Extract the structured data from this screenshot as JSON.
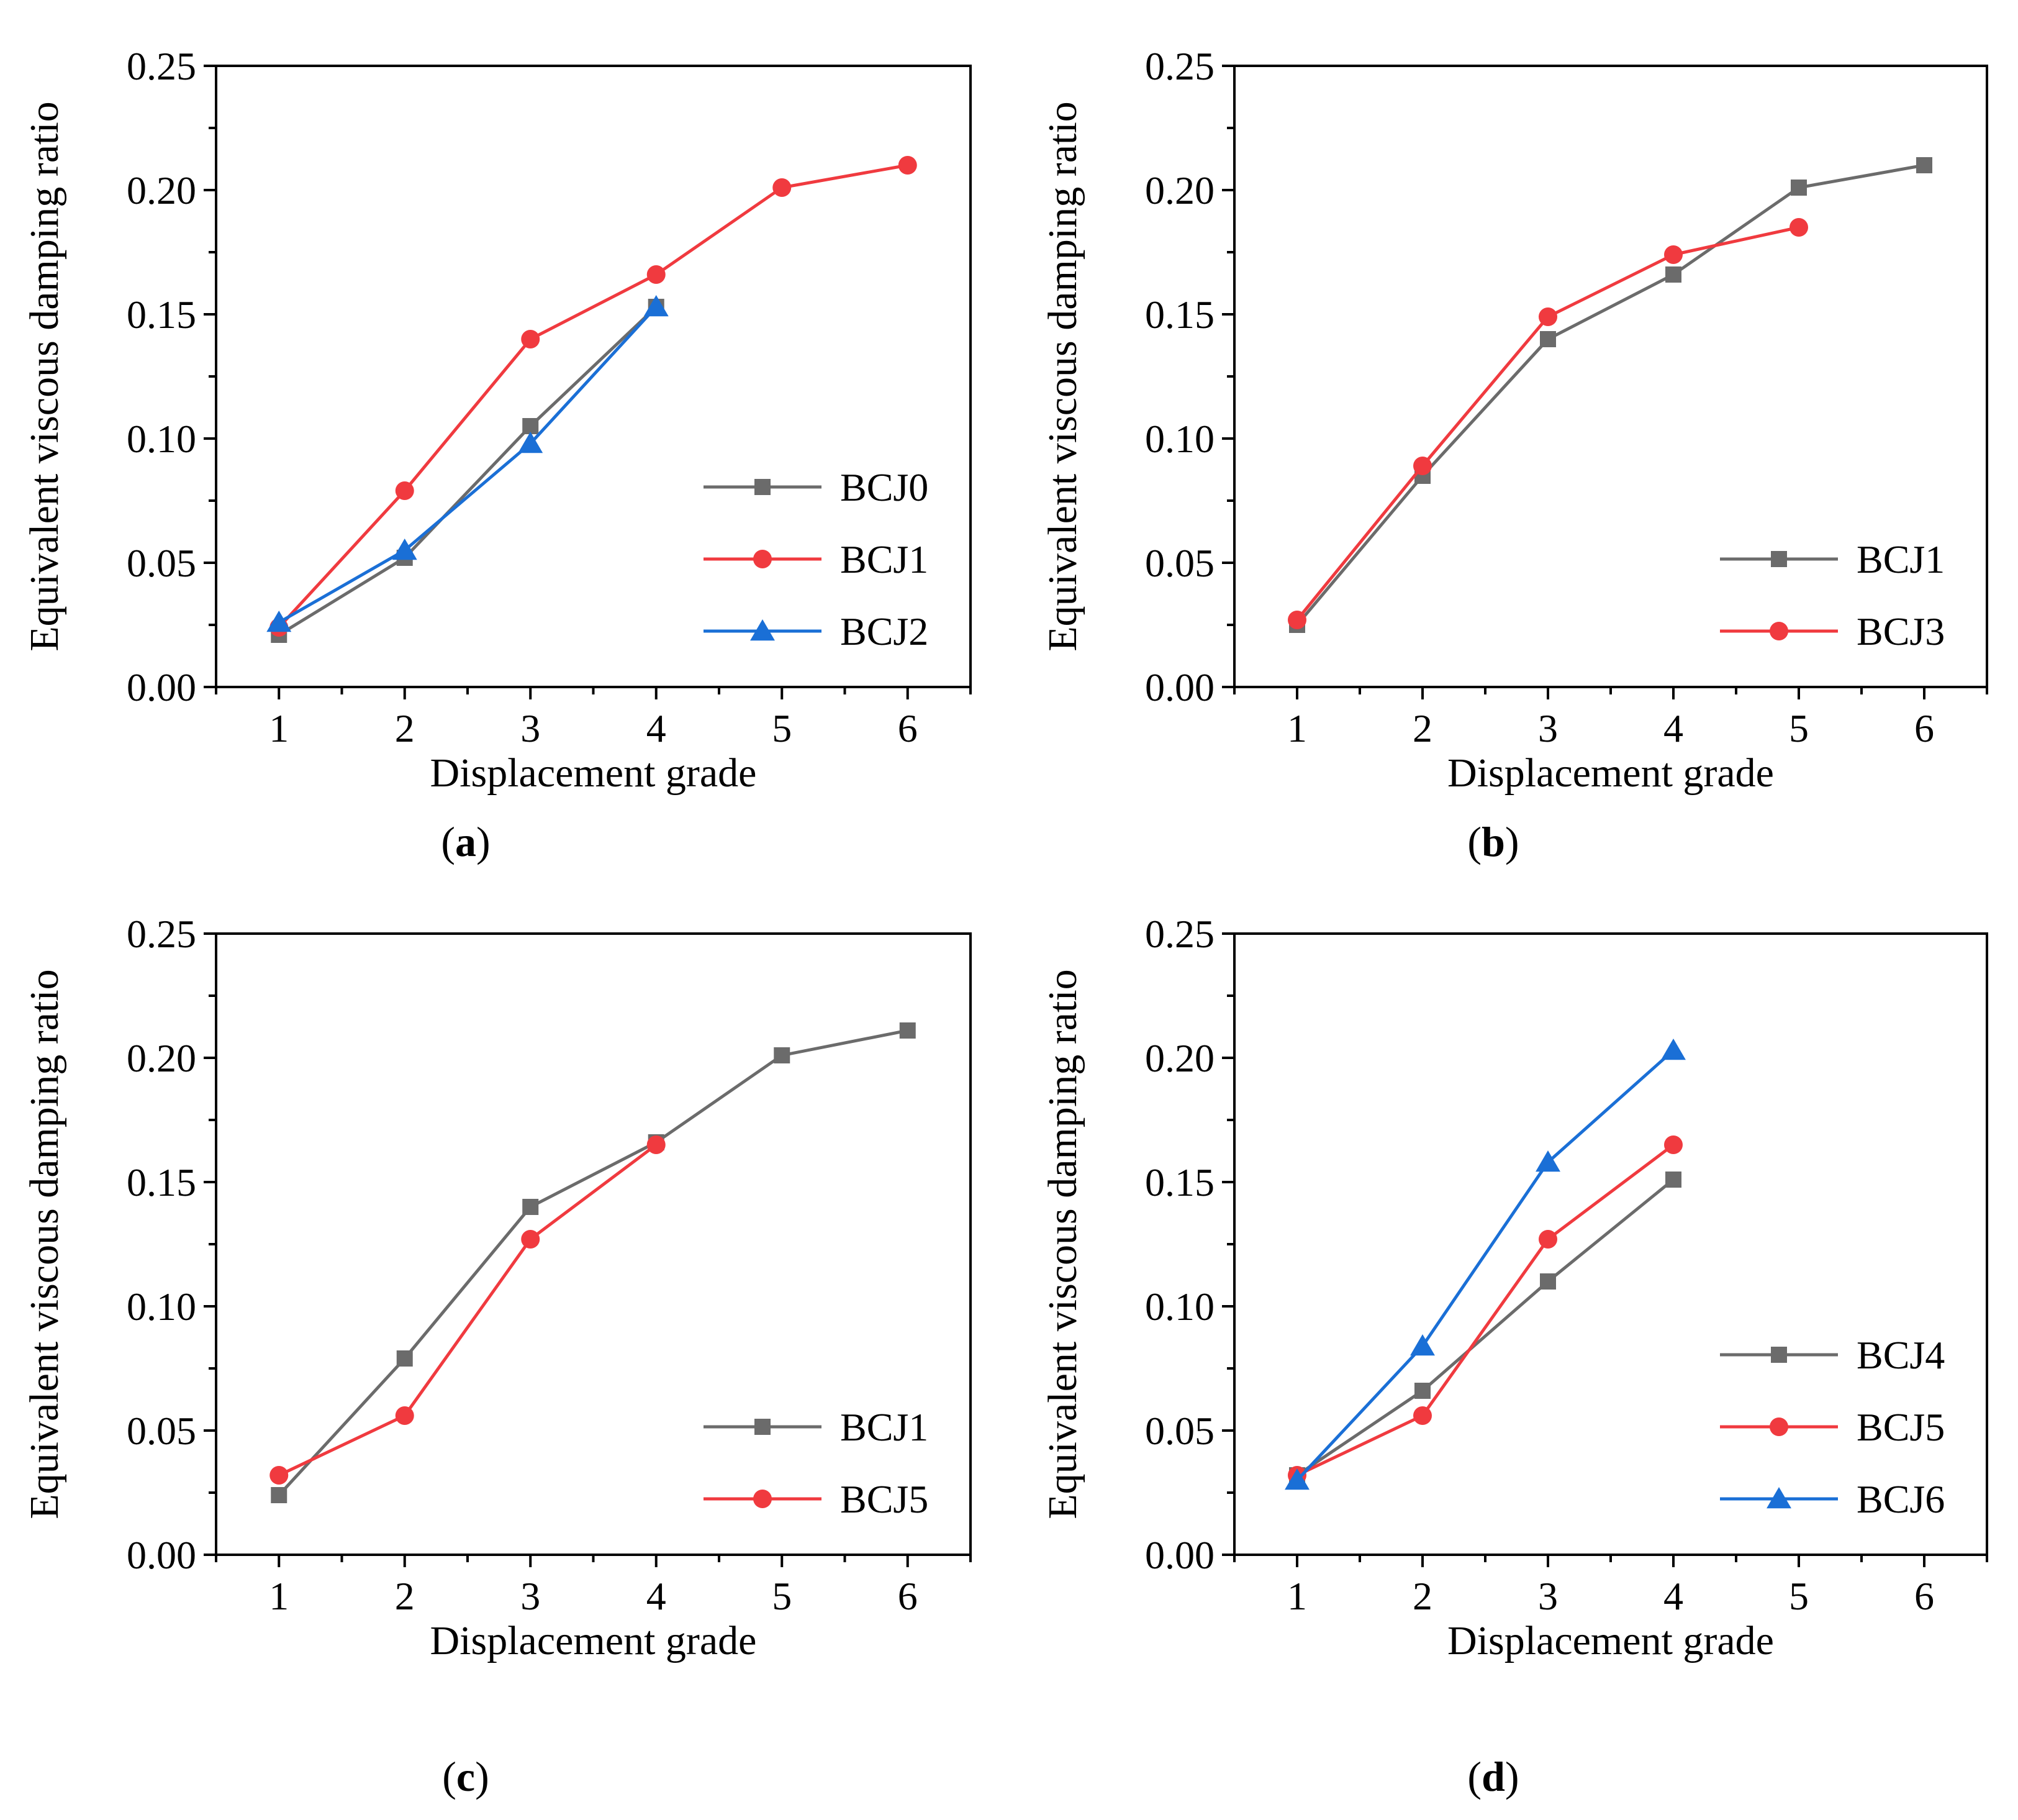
{
  "figure_captions": [
    "a",
    "b",
    "c",
    "d"
  ],
  "chart_data": [
    {
      "panel": "a",
      "type": "line",
      "xlabel": "Displacement grade",
      "ylabel": "Equivalent viscous damping ratio",
      "xticks": [
        "1",
        "2",
        "3",
        "4",
        "5",
        "6"
      ],
      "yticks": [
        "0.00",
        "0.05",
        "0.10",
        "0.15",
        "0.20",
        "0.25"
      ],
      "xlim": [
        0.5,
        6.5
      ],
      "ylim": [
        0,
        0.25
      ],
      "legend_position": "bottom-right",
      "series": [
        {
          "name": "BCJ0",
          "color": "#6b6b6b",
          "marker": "square",
          "x": [
            1,
            2,
            3,
            4
          ],
          "y": [
            0.021,
            0.052,
            0.105,
            0.153
          ]
        },
        {
          "name": "BCJ1",
          "color": "#f03a3f",
          "marker": "circle",
          "x": [
            1,
            2,
            3,
            4,
            5,
            6
          ],
          "y": [
            0.024,
            0.079,
            0.14,
            0.166,
            0.201,
            0.21
          ]
        },
        {
          "name": "BCJ2",
          "color": "#1a6fd6",
          "marker": "triangle",
          "x": [
            1,
            2,
            3,
            4
          ],
          "y": [
            0.026,
            0.055,
            0.098,
            0.153
          ]
        }
      ]
    },
    {
      "panel": "b",
      "type": "line",
      "xlabel": "Displacement grade",
      "ylabel": "Equivalent viscous damping ratio",
      "xticks": [
        "1",
        "2",
        "3",
        "4",
        "5",
        "6"
      ],
      "yticks": [
        "0.00",
        "0.05",
        "0.10",
        "0.15",
        "0.20",
        "0.25"
      ],
      "xlim": [
        0.5,
        6.5
      ],
      "ylim": [
        0,
        0.25
      ],
      "legend_position": "bottom-right",
      "series": [
        {
          "name": "BCJ1",
          "color": "#6b6b6b",
          "marker": "square",
          "x": [
            1,
            2,
            3,
            4,
            5,
            6
          ],
          "y": [
            0.025,
            0.085,
            0.14,
            0.166,
            0.201,
            0.21
          ]
        },
        {
          "name": "BCJ3",
          "color": "#f03a3f",
          "marker": "circle",
          "x": [
            1,
            2,
            3,
            4,
            5
          ],
          "y": [
            0.027,
            0.089,
            0.149,
            0.174,
            0.185
          ]
        }
      ]
    },
    {
      "panel": "c",
      "type": "line",
      "xlabel": "Displacement grade",
      "ylabel": "Equivalent viscous damping ratio",
      "xticks": [
        "1",
        "2",
        "3",
        "4",
        "5",
        "6"
      ],
      "yticks": [
        "0.00",
        "0.05",
        "0.10",
        "0.15",
        "0.20",
        "0.25"
      ],
      "xlim": [
        0.5,
        6.5
      ],
      "ylim": [
        0,
        0.25
      ],
      "legend_position": "bottom-right",
      "series": [
        {
          "name": "BCJ1",
          "color": "#6b6b6b",
          "marker": "square",
          "x": [
            1,
            2,
            3,
            4,
            5,
            6
          ],
          "y": [
            0.024,
            0.079,
            0.14,
            0.166,
            0.201,
            0.211
          ]
        },
        {
          "name": "BCJ5",
          "color": "#f03a3f",
          "marker": "circle",
          "x": [
            1,
            2,
            3,
            4
          ],
          "y": [
            0.032,
            0.056,
            0.127,
            0.165
          ]
        }
      ]
    },
    {
      "panel": "d",
      "type": "line",
      "xlabel": "Displacement grade",
      "ylabel": "Equivalent viscous damping ratio",
      "xticks": [
        "1",
        "2",
        "3",
        "4",
        "5",
        "6"
      ],
      "yticks": [
        "0.00",
        "0.05",
        "0.10",
        "0.15",
        "0.20",
        "0.25"
      ],
      "xlim": [
        0.5,
        6.5
      ],
      "ylim": [
        0,
        0.25
      ],
      "legend_position": "bottom-right",
      "series": [
        {
          "name": "BCJ4",
          "color": "#6b6b6b",
          "marker": "square",
          "x": [
            1,
            2,
            3,
            4
          ],
          "y": [
            0.032,
            0.066,
            0.11,
            0.151
          ]
        },
        {
          "name": "BCJ5",
          "color": "#f03a3f",
          "marker": "circle",
          "x": [
            1,
            2,
            3,
            4
          ],
          "y": [
            0.032,
            0.056,
            0.127,
            0.165
          ]
        },
        {
          "name": "BCJ6",
          "color": "#1a6fd6",
          "marker": "triangle",
          "x": [
            1,
            2,
            3,
            4
          ],
          "y": [
            0.03,
            0.084,
            0.158,
            0.203
          ]
        }
      ]
    }
  ]
}
